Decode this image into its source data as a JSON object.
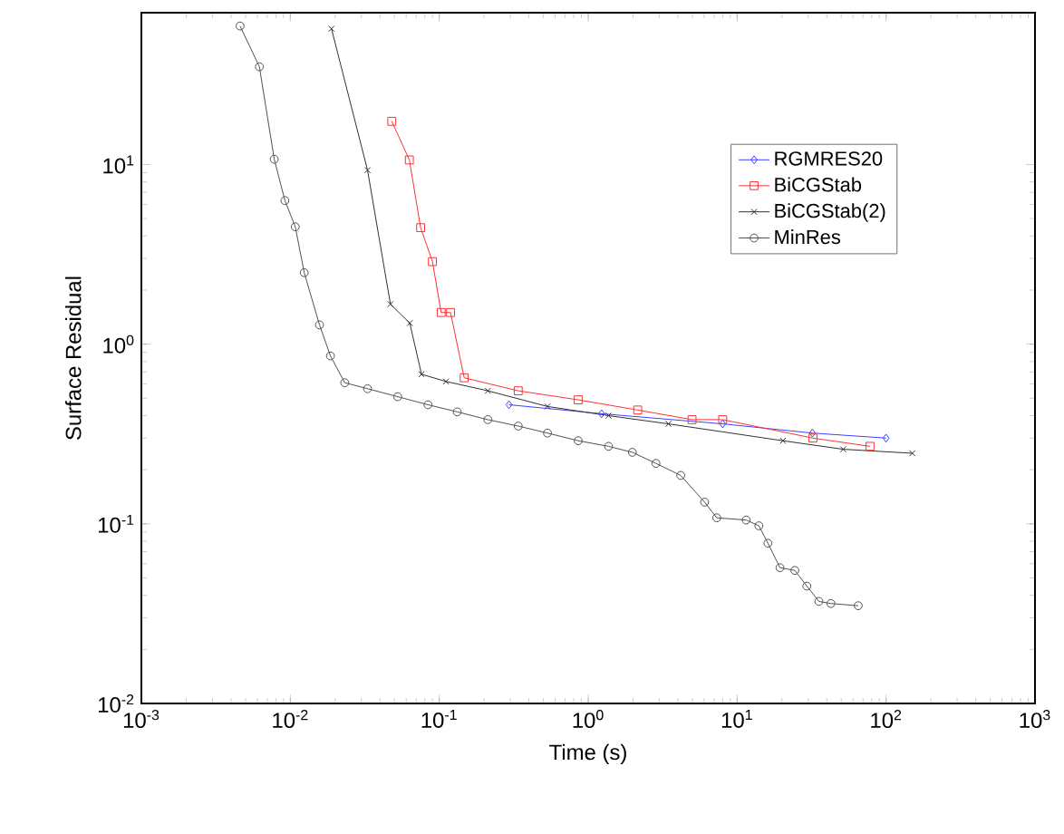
{
  "chart_data": {
    "type": "line",
    "xlabel": "Time (s)",
    "ylabel": "Surface Residual",
    "log": "xy",
    "xlim": [
      0.001,
      1000
    ],
    "ylim": [
      0.01,
      70
    ],
    "xticks": [
      {
        "value": 0.001,
        "label": "10$^{-3}$"
      },
      {
        "value": 0.01,
        "label": "10$^{-2}$"
      },
      {
        "value": 0.1,
        "label": "10$^{-1}$"
      },
      {
        "value": 1,
        "label": "10$^{0}$"
      },
      {
        "value": 10,
        "label": "10$^{1}$"
      },
      {
        "value": 100,
        "label": "10$^{2}$"
      },
      {
        "value": 1000,
        "label": "10$^{3}$"
      }
    ],
    "yticks": [
      {
        "value": 0.01,
        "label": "10$^{-2}$"
      },
      {
        "value": 0.1,
        "label": "10$^{-1}$"
      },
      {
        "value": 1,
        "label": "10$^{0}$"
      },
      {
        "value": 10,
        "label": "10$^{1}$"
      }
    ],
    "grid": false,
    "legend": "top right",
    "series": [
      {
        "name": "RGMRES20",
        "color": "#4040ff",
        "marker": "diamond",
        "x": [
          0.294,
          1.23,
          8.0,
          32,
          100
        ],
        "values": [
          0.46,
          0.41,
          0.36,
          0.32,
          0.3
        ]
      },
      {
        "name": "BiCGStab",
        "color": "#ff3030",
        "marker": "square",
        "x": [
          0.048,
          0.063,
          0.075,
          0.09,
          0.103,
          0.119,
          0.147,
          0.339,
          0.857,
          2.15,
          4.98,
          8.0,
          32.3,
          78
        ],
        "values": [
          17.4,
          10.6,
          4.45,
          2.88,
          1.5,
          1.5,
          0.65,
          0.55,
          0.49,
          0.43,
          0.38,
          0.38,
          0.3,
          0.27
        ]
      },
      {
        "name": "BiCGStab(2)",
        "color": "#303030",
        "marker": "cross",
        "x": [
          0.0189,
          0.033,
          0.047,
          0.0634,
          0.076,
          0.111,
          0.212,
          0.533,
          1.37,
          3.46,
          20.3,
          51.5,
          150
        ],
        "values": [
          57,
          9.3,
          1.67,
          1.31,
          0.68,
          0.62,
          0.55,
          0.45,
          0.4,
          0.36,
          0.29,
          0.26,
          0.247
        ]
      },
      {
        "name": "MinRes",
        "color": "#505050",
        "marker": "circle",
        "x": [
          0.0046,
          0.0062,
          0.0078,
          0.0092,
          0.0108,
          0.0124,
          0.0157,
          0.0186,
          0.0232,
          0.033,
          0.0526,
          0.084,
          0.132,
          0.212,
          0.339,
          0.533,
          0.857,
          1.37,
          1.98,
          2.85,
          4.18,
          6.05,
          7.3,
          11.5,
          14.0,
          16.1,
          19.4,
          24.4,
          29.4,
          35.4,
          42.6,
          65
        ],
        "values": [
          59,
          35,
          10.7,
          6.3,
          4.5,
          2.5,
          1.28,
          0.86,
          0.61,
          0.565,
          0.51,
          0.46,
          0.42,
          0.38,
          0.35,
          0.32,
          0.29,
          0.27,
          0.25,
          0.217,
          0.186,
          0.132,
          0.108,
          0.105,
          0.0975,
          0.078,
          0.057,
          0.055,
          0.045,
          0.037,
          0.036,
          0.035
        ]
      }
    ]
  }
}
